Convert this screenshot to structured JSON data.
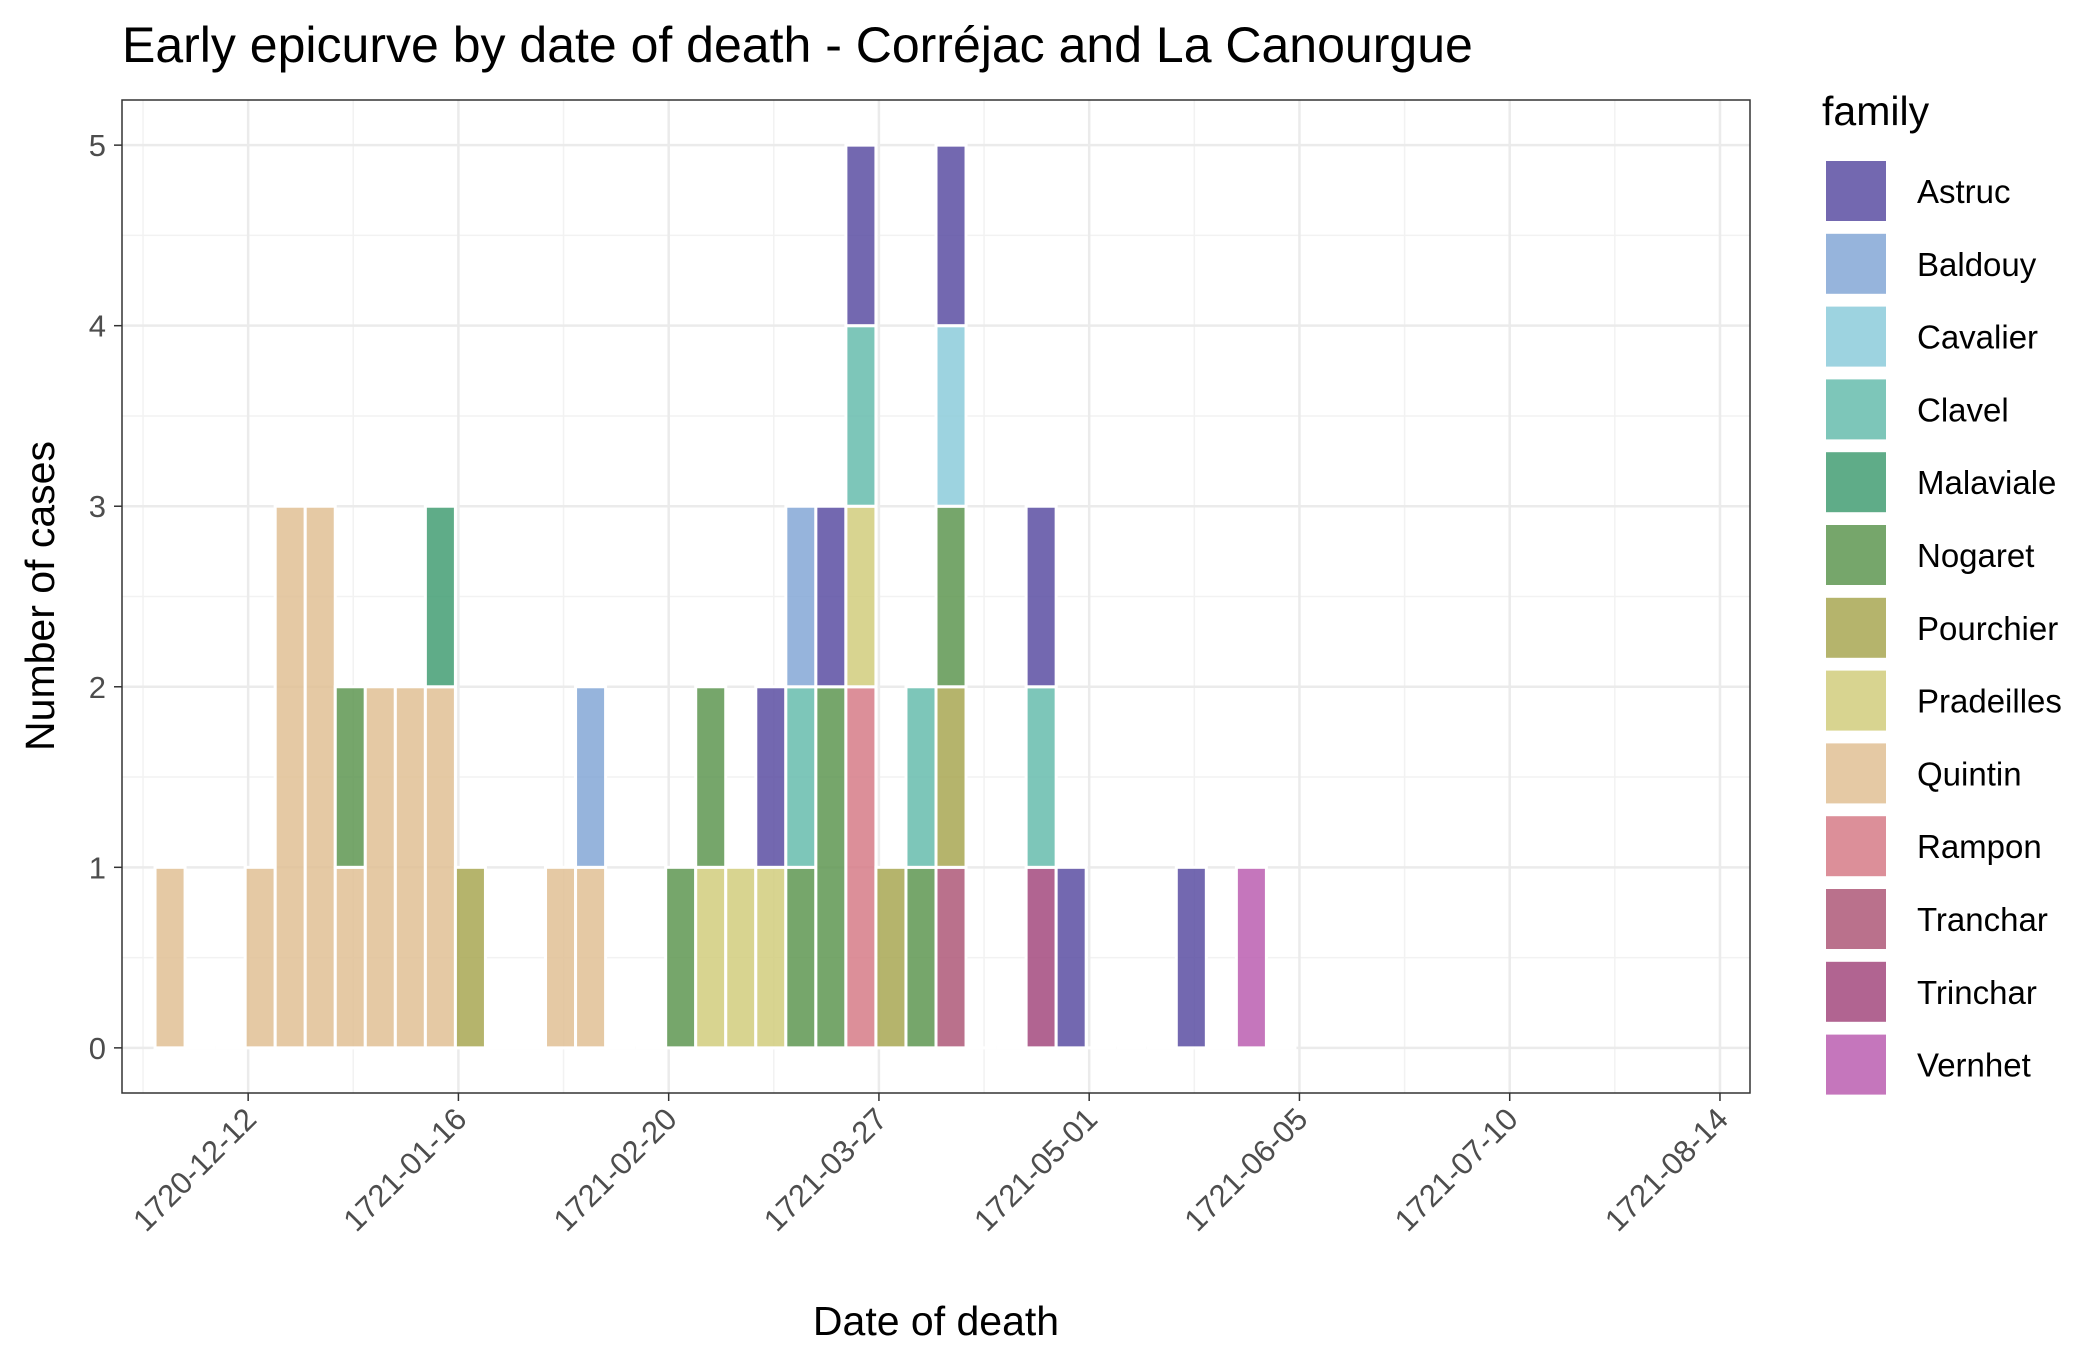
{
  "chart_data": {
    "type": "bar",
    "stacked": true,
    "title": "Early epicurve by date of death - Corréjac and La Canourgue",
    "xlabel": "Date of death",
    "ylabel": "Number of cases",
    "x_axis_type": "date",
    "bin_width_days": 5,
    "xlim": [
      "1720-11-21",
      "1721-08-19"
    ],
    "ylim": [
      -0.25,
      5.25
    ],
    "x_ticks": [
      "1720-12-12",
      "1721-01-16",
      "1721-02-20",
      "1721-03-27",
      "1721-05-01",
      "1721-06-05",
      "1721-07-10",
      "1721-08-14"
    ],
    "y_ticks": [
      0,
      1,
      2,
      3,
      4,
      5
    ],
    "grid": true,
    "legend": {
      "title": "family",
      "position": "right",
      "entries": [
        "Astruc",
        "Baldouy",
        "Cavalier",
        "Clavel",
        "Malaviale",
        "Nogaret",
        "Pourchier",
        "Pradeilles",
        "Quintin",
        "Rampon",
        "Tranchar",
        "Trinchar",
        "Vernhet"
      ]
    },
    "colors": {
      "Astruc": "#5b4da2",
      "Baldouy": "#84a7d6",
      "Cavalier": "#8ccbda",
      "Clavel": "#66bcad",
      "Malaviale": "#439e73",
      "Nogaret": "#5e9651",
      "Pourchier": "#a8a752",
      "Pradeilles": "#d1cc7d",
      "Quintin": "#e0bf94",
      "Rampon": "#d67b87",
      "Tranchar": "#ae5878",
      "Trinchar": "#a3497e",
      "Vernhet": "#bb5eb0"
    },
    "bins": [
      {
        "date": "1720-11-29",
        "counts": {
          "Quintin": 1
        }
      },
      {
        "date": "1720-12-04",
        "counts": {}
      },
      {
        "date": "1720-12-09",
        "counts": {}
      },
      {
        "date": "1720-12-14",
        "counts": {
          "Quintin": 1
        }
      },
      {
        "date": "1720-12-19",
        "counts": {
          "Quintin": 3
        }
      },
      {
        "date": "1720-12-24",
        "counts": {
          "Quintin": 3
        }
      },
      {
        "date": "1720-12-29",
        "counts": {
          "Quintin": 1,
          "Nogaret": 1
        }
      },
      {
        "date": "1721-01-03",
        "counts": {
          "Quintin": 2
        }
      },
      {
        "date": "1721-01-08",
        "counts": {
          "Quintin": 2
        }
      },
      {
        "date": "1721-01-13",
        "counts": {
          "Quintin": 2,
          "Malaviale": 1
        }
      },
      {
        "date": "1721-01-18",
        "counts": {
          "Pourchier": 1
        }
      },
      {
        "date": "1721-01-23",
        "counts": {}
      },
      {
        "date": "1721-01-28",
        "counts": {}
      },
      {
        "date": "1721-02-02",
        "counts": {
          "Quintin": 1
        }
      },
      {
        "date": "1721-02-07",
        "counts": {
          "Quintin": 1,
          "Baldouy": 1
        }
      },
      {
        "date": "1721-02-12",
        "counts": {}
      },
      {
        "date": "1721-02-17",
        "counts": {}
      },
      {
        "date": "1721-02-22",
        "counts": {
          "Nogaret": 1
        }
      },
      {
        "date": "1721-02-27",
        "counts": {
          "Pradeilles": 1,
          "Nogaret": 1
        }
      },
      {
        "date": "1721-03-04",
        "counts": {
          "Pradeilles": 1
        }
      },
      {
        "date": "1721-03-09",
        "counts": {
          "Pradeilles": 1,
          "Astruc": 1
        }
      },
      {
        "date": "1721-03-14",
        "counts": {
          "Nogaret": 1,
          "Clavel": 1,
          "Baldouy": 1
        }
      },
      {
        "date": "1721-03-19",
        "counts": {
          "Nogaret": 2,
          "Astruc": 1
        }
      },
      {
        "date": "1721-03-24",
        "counts": {
          "Rampon": 2,
          "Pradeilles": 1,
          "Clavel": 1,
          "Astruc": 1
        }
      },
      {
        "date": "1721-03-29",
        "counts": {
          "Pourchier": 1
        }
      },
      {
        "date": "1721-04-03",
        "counts": {
          "Nogaret": 1,
          "Clavel": 1
        }
      },
      {
        "date": "1721-04-08",
        "counts": {
          "Tranchar": 1,
          "Pourchier": 1,
          "Nogaret": 1,
          "Cavalier": 1,
          "Astruc": 1
        }
      },
      {
        "date": "1721-04-13",
        "counts": {}
      },
      {
        "date": "1721-04-18",
        "counts": {}
      },
      {
        "date": "1721-04-23",
        "counts": {
          "Trinchar": 1,
          "Clavel": 1,
          "Astruc": 1
        }
      },
      {
        "date": "1721-04-28",
        "counts": {
          "Astruc": 1
        }
      },
      {
        "date": "1721-05-03",
        "counts": {}
      },
      {
        "date": "1721-05-08",
        "counts": {}
      },
      {
        "date": "1721-05-13",
        "counts": {}
      },
      {
        "date": "1721-05-18",
        "counts": {
          "Astruc": 1
        }
      },
      {
        "date": "1721-05-23",
        "counts": {}
      },
      {
        "date": "1721-05-28",
        "counts": {
          "Vernhet": 1
        }
      },
      {
        "date": "1721-06-02",
        "counts": {}
      }
    ]
  }
}
